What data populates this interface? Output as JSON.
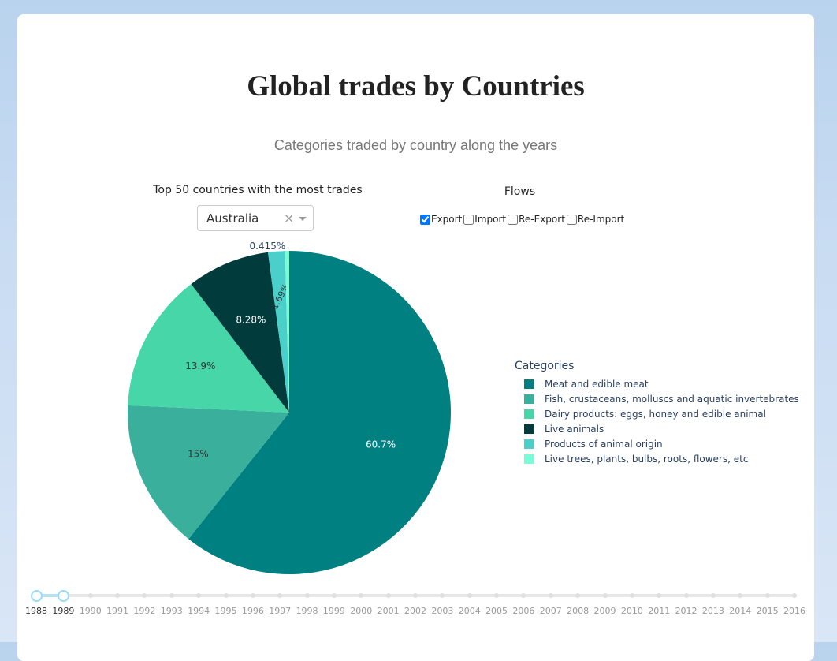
{
  "page": {
    "title": "Global trades by Countries",
    "subtitle": "Categories traded by country along the years"
  },
  "dropdown": {
    "label": "Top 50 countries with the most trades",
    "value": "Australia",
    "clear_glyph": "×"
  },
  "flows": {
    "label": "Flows",
    "options": [
      {
        "label": "Export",
        "checked": true
      },
      {
        "label": "Import",
        "checked": false
      },
      {
        "label": "Re-Export",
        "checked": false
      },
      {
        "label": "Re-Import",
        "checked": false
      }
    ]
  },
  "legend": {
    "title": "Categories"
  },
  "chart_data": {
    "type": "pie",
    "slices": [
      {
        "label": "Meat and edible meat",
        "value": 60.7,
        "text": "60.7%",
        "color": "#008080"
      },
      {
        "label": "Fish, crustaceans, molluscs and aquatic invertebrates",
        "value": 15.0,
        "text": "15%",
        "color": "#3aaf9c"
      },
      {
        "label": "Dairy products: eggs, honey and edible animal",
        "value": 13.9,
        "text": "13.9%",
        "color": "#46d6a8"
      },
      {
        "label": "Live animals",
        "value": 8.28,
        "text": "8.28%",
        "color": "#023b3c"
      },
      {
        "label": "Products of animal origin",
        "value": 1.69,
        "text": "1.69%",
        "color": "#4acfcb"
      },
      {
        "label": "Live trees, plants, bulbs, roots, flowers, etc",
        "value": 0.415,
        "text": "0.415%",
        "color": "#7afbd6"
      }
    ],
    "legend_placement": "right",
    "direction": "clockwise",
    "start": "top"
  },
  "slider": {
    "years": [
      "1988",
      "1989",
      "1990",
      "1991",
      "1992",
      "1993",
      "1994",
      "1995",
      "1996",
      "1997",
      "1998",
      "1999",
      "2000",
      "2001",
      "2002",
      "2003",
      "2004",
      "2005",
      "2006",
      "2007",
      "2008",
      "2009",
      "2010",
      "2011",
      "2012",
      "2013",
      "2014",
      "2015",
      "2016"
    ],
    "range_start": "1988",
    "range_end": "1989",
    "accent_color": "#96dbfa"
  }
}
